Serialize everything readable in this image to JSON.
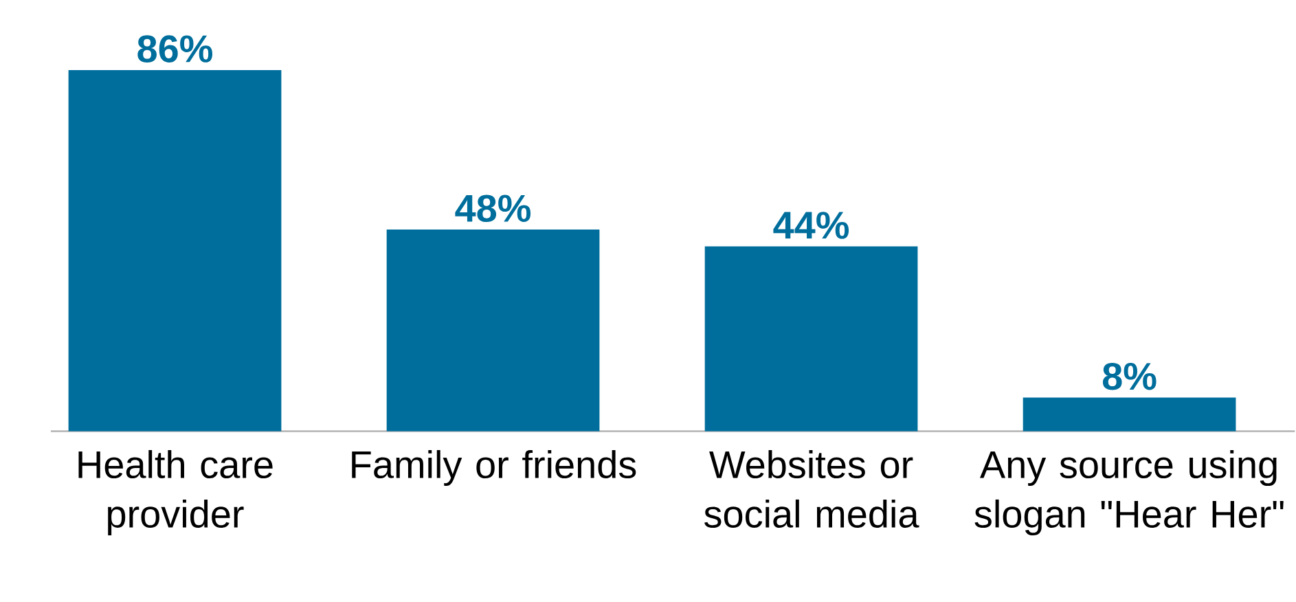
{
  "chart_data": {
    "type": "bar",
    "categories": [
      "Health care provider",
      "Family or friends",
      "Websites or social media",
      "Any source using slogan \"Hear Her\""
    ],
    "values": [
      86,
      48,
      44,
      8
    ],
    "value_labels": [
      "86%",
      "48%",
      "44%",
      "8%"
    ],
    "color": "#006e9c"
  }
}
